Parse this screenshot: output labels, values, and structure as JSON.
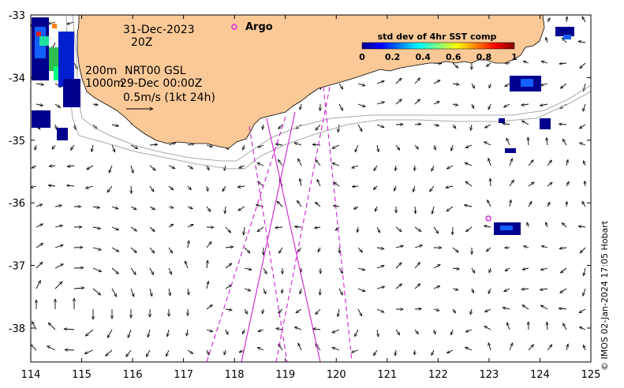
{
  "map": {
    "date_line": "31-Dec-2023",
    "time_line": "20Z",
    "depth_200": "200m",
    "depth_1000": "1000m",
    "product_line": "NRT00 GSL",
    "product_time": "29-Dec 00:00Z",
    "vector_scale_label": "0.5m/s (1kt 24h)",
    "argo_label": "Argo",
    "credit": "© IMOS 02-Jan-2024 17:05 Hobart",
    "x_ticks": [
      "114",
      "115",
      "116",
      "117",
      "118",
      "119",
      "120",
      "121",
      "122",
      "123",
      "124",
      "125"
    ],
    "y_ticks": [
      "-33",
      "-34",
      "-35",
      "-36",
      "-37",
      "-38"
    ],
    "colorbar": {
      "title": "std dev of 4hr SST comp",
      "ticks": [
        "0",
        "0.2",
        "0.4",
        "0.6",
        "0.8",
        "1"
      ],
      "range": [
        0,
        1
      ]
    },
    "argo_float": {
      "lon": 122.97,
      "lat": -36.22
    },
    "colors": {
      "land": "#fbc997",
      "tracks": "#d020d0",
      "argo": "#e020e0",
      "isobath": "#a8a8a8"
    }
  }
}
